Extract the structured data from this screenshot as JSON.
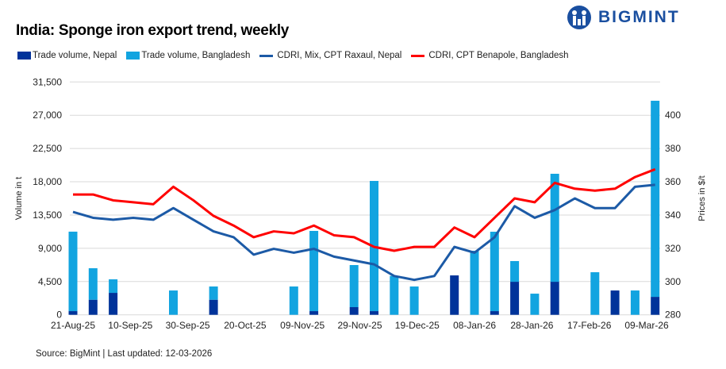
{
  "brand": {
    "name": "BIGMINT",
    "color": "#1a4fa0"
  },
  "footer": {
    "source": "Source: BigMint | Last updated: 12-03-2026"
  },
  "chart_data": {
    "type": "bar",
    "title": "India: Sponge iron export trend, weekly",
    "x_tick_labels": [
      "21-Aug-25",
      "10-Sep-25",
      "30-Sep-25",
      "20-Oct-25",
      "09-Nov-25",
      "29-Nov-25",
      "19-Dec-25",
      "08-Jan-26",
      "28-Jan-26",
      "17-Feb-26",
      "09-Mar-26"
    ],
    "ylabel_left": "Volume in t",
    "ylabel_right": "Prices in $/t",
    "ylim_left": [
      0,
      31500
    ],
    "yticks_left": [
      "0",
      "4,500",
      "9,000",
      "13,500",
      "18,000",
      "22,500",
      "27,000",
      "31,500"
    ],
    "ylim_right": [
      280,
      400
    ],
    "yticks_right": [
      "280",
      "300",
      "320",
      "340",
      "360",
      "380",
      "400"
    ],
    "grid": true,
    "legend_placement": "top",
    "series": [
      {
        "name": "Trade volume, Nepal",
        "kind": "stacked-bar",
        "color": "#00339a",
        "values": [
          500,
          2040,
          2970,
          0,
          0,
          0,
          0,
          2040,
          0,
          0,
          0,
          0,
          500,
          0,
          1040,
          500,
          0,
          0,
          0,
          5330,
          0,
          500,
          4470,
          0,
          4470,
          0,
          0,
          3290,
          0,
          2430
        ]
      },
      {
        "name": "Trade volume, Bangladesh",
        "kind": "stacked-bar",
        "color": "#12a4e0",
        "values": [
          10750,
          4260,
          1830,
          0,
          0,
          3290,
          0,
          1790,
          0,
          0,
          0,
          3830,
          10850,
          0,
          5690,
          17610,
          5260,
          3830,
          0,
          0,
          8660,
          10740,
          2800,
          2860,
          14610,
          0,
          5760,
          0,
          3290,
          26530
        ]
      },
      {
        "name": "CDRI, Mix, CPT Raxaul, Nepal",
        "kind": "line",
        "axis": "right",
        "color": "#1c5aa6",
        "values": [
          333,
          330,
          329,
          330,
          329,
          335,
          329,
          323,
          320,
          311,
          314,
          312,
          314,
          310,
          308,
          306,
          300,
          298,
          300,
          315,
          312,
          320,
          336,
          330,
          334,
          340,
          335,
          335,
          346,
          347
        ]
      },
      {
        "name": "CDRI, CPT Benapole, Bangladesh",
        "kind": "line",
        "axis": "right",
        "color": "#ff0000",
        "values": [
          342,
          342,
          339,
          338,
          337,
          346,
          339,
          331,
          326,
          320,
          323,
          322,
          326,
          321,
          320,
          315,
          313,
          315,
          315,
          325,
          320,
          330,
          340,
          338,
          348,
          345,
          344,
          345,
          351,
          355
        ]
      }
    ]
  }
}
